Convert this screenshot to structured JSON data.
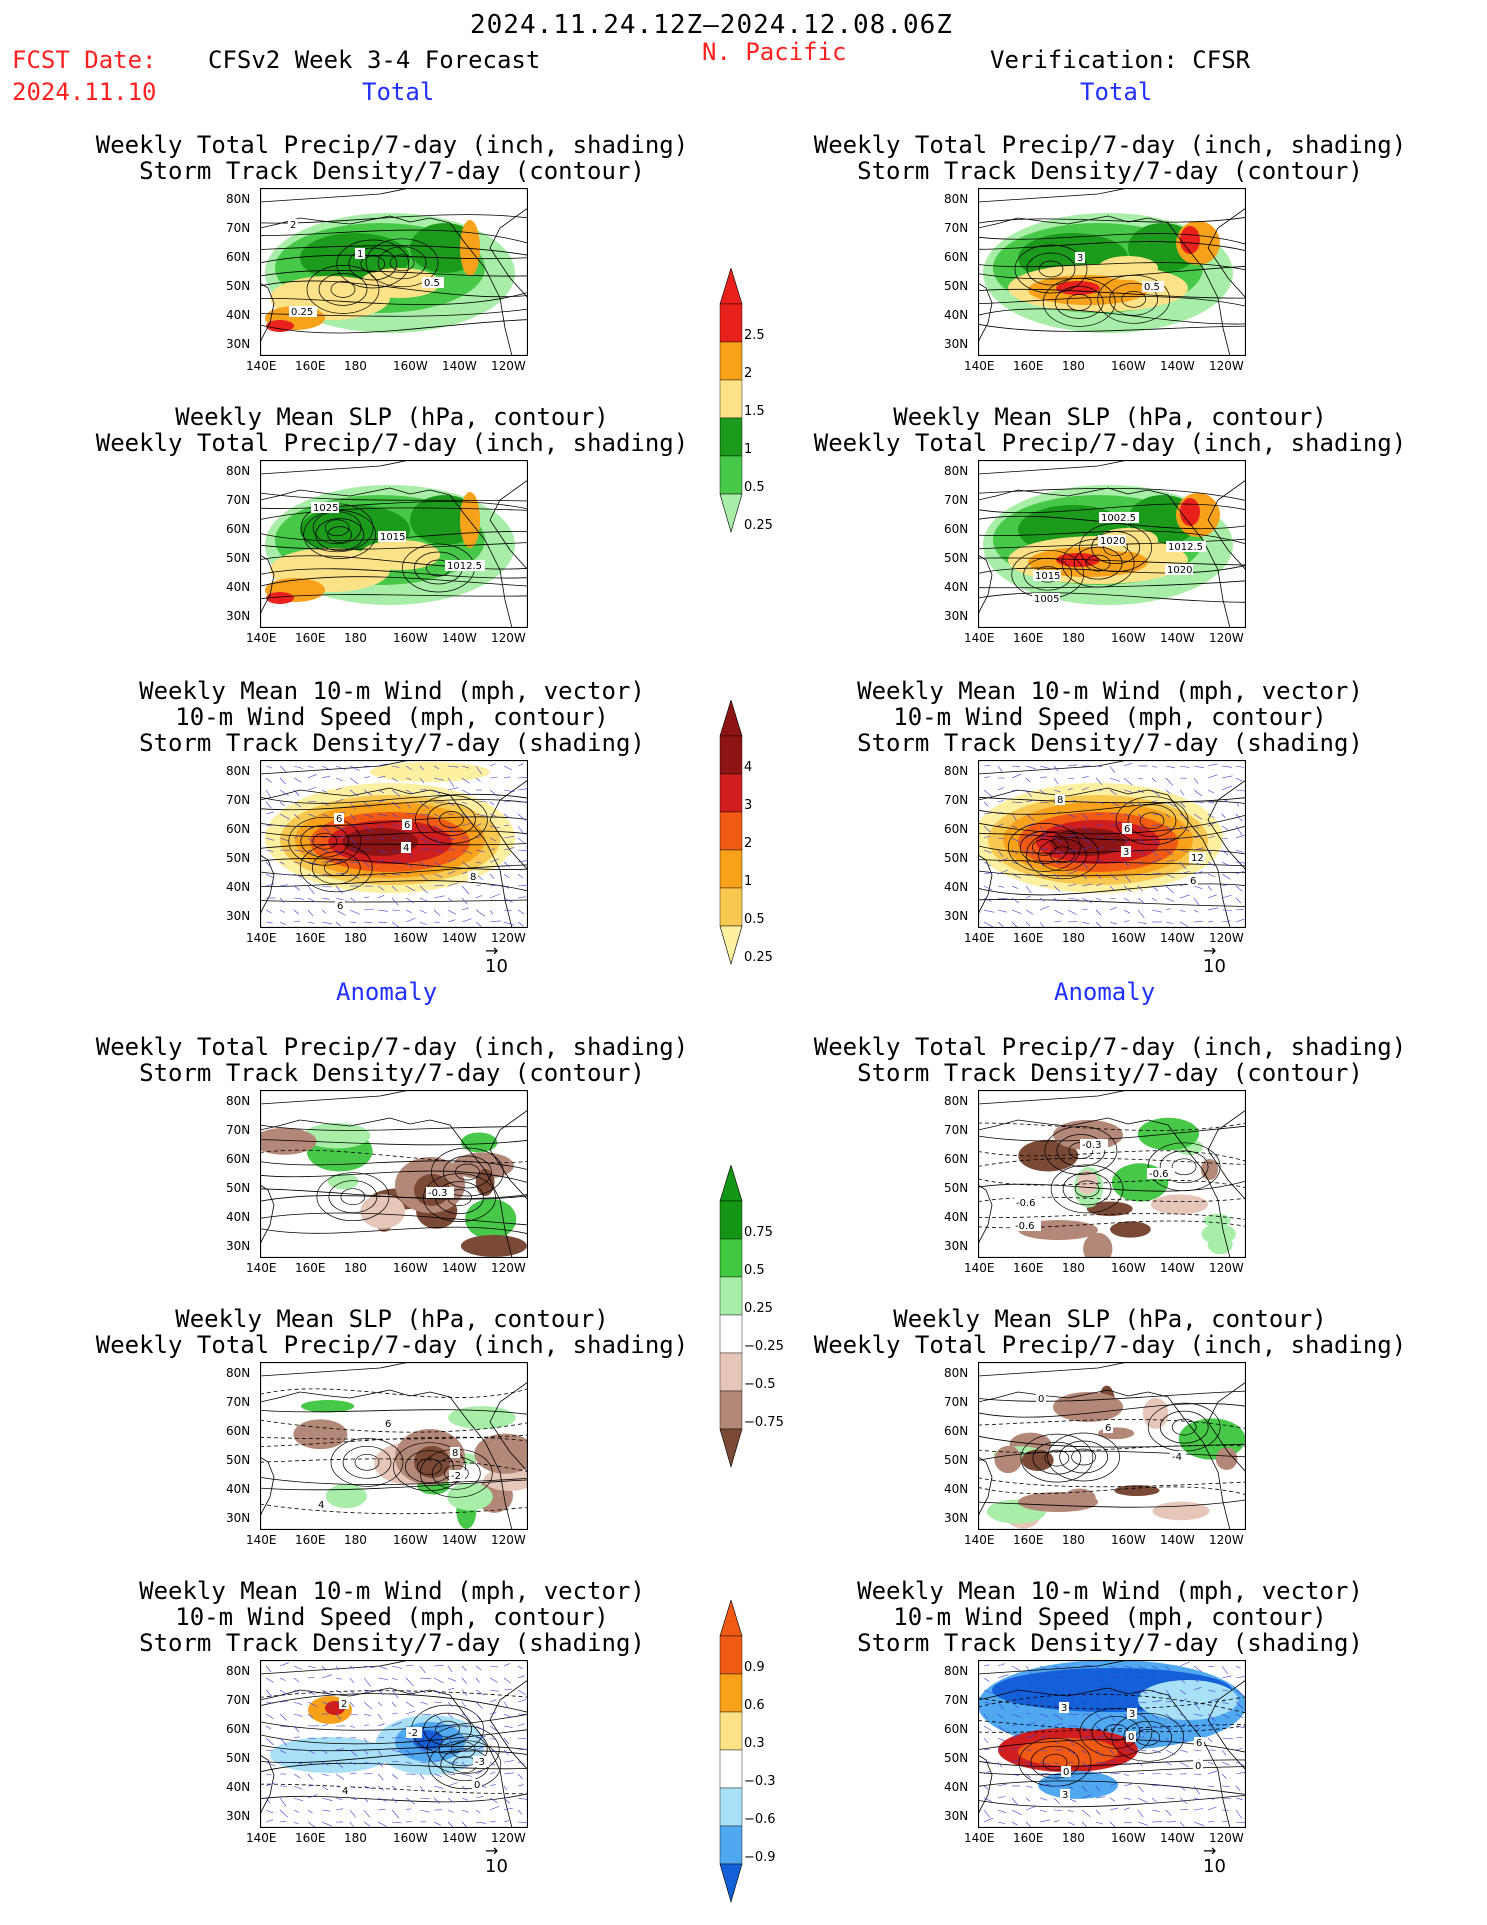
{
  "header": {
    "period": "2024.11.24.12Z–2024.12.08.06Z",
    "fcst_label": "FCST Date:",
    "fcst_date": "2024.11.10",
    "model_title": "CFSv2 Week 3-4 Forecast",
    "region": "N. Pacific",
    "verification": "Verification: CFSR"
  },
  "sections": {
    "total": "Total",
    "anomaly": "Anomaly"
  },
  "panel_titles": {
    "precip_storm": [
      "Weekly Total Precip/7-day (inch, shading)",
      "Storm Track Density/7-day (contour)"
    ],
    "slp_precip": [
      "Weekly Mean SLP (hPa, contour)",
      "Weekly Total Precip/7-day (inch, shading)"
    ],
    "wind_storm": [
      "Weekly Mean 10-m Wind (mph, vector)",
      "10-m Wind Speed (mph, contour)",
      "Storm Track Density/7-day (shading)"
    ]
  },
  "axes": {
    "lat_labels": [
      "80N",
      "70N",
      "60N",
      "50N",
      "40N",
      "30N"
    ],
    "lon_labels": [
      "140E",
      "160E",
      "180",
      "160W",
      "140W",
      "120W"
    ]
  },
  "vector_ref": "10",
  "colorbars": [
    {
      "id": "total-precip",
      "labels": [
        "2.5",
        "2",
        "1.5",
        "1",
        "0.5",
        "0.25"
      ],
      "colors": [
        "#e8211c",
        "#f7a21a",
        "#fde287",
        "#1b9a1b",
        "#48c848",
        "#a8eea8"
      ]
    },
    {
      "id": "total-storm",
      "labels": [
        "4",
        "3",
        "2",
        "1",
        "0.5",
        "0.25"
      ],
      "colors": [
        "#8c1414",
        "#d01e1e",
        "#f05a14",
        "#f7a21a",
        "#f8c850",
        "#fdf0a0"
      ]
    },
    {
      "id": "anom-precip",
      "labels": [
        "0.75",
        "0.5",
        "0.25",
        "−0.25",
        "−0.5",
        "−0.75"
      ],
      "colors": [
        "#149614",
        "#40c840",
        "#a8eea8",
        "#ffffff",
        "#e6c6b8",
        "#b48878",
        "#7a4a36"
      ]
    },
    {
      "id": "anom-storm",
      "labels": [
        "0.9",
        "0.6",
        "0.3",
        "−0.3",
        "−0.6",
        "−0.9"
      ],
      "colors": [
        "#f05a14",
        "#f7a21a",
        "#fde287",
        "#ffffff",
        "#a8e0f8",
        "#50a8f0",
        "#1460d8"
      ]
    }
  ],
  "panels": [
    {
      "id": "fc-total-precip-storm",
      "labels": [
        "2",
        "1",
        "0.5",
        "0.25"
      ]
    },
    {
      "id": "fc-total-slp-precip",
      "labels": [
        "1025",
        "1015",
        "1012.5"
      ]
    },
    {
      "id": "fc-total-wind-storm",
      "labels": [
        "6",
        "4",
        "8",
        "6",
        "6"
      ]
    },
    {
      "id": "vf-total-precip-storm",
      "labels": [
        "3",
        "0.5"
      ]
    },
    {
      "id": "vf-total-slp-precip",
      "labels": [
        "1020",
        "1020",
        "1005",
        "1002.5",
        "1012.5",
        "1015"
      ]
    },
    {
      "id": "vf-total-wind-storm",
      "labels": [
        "3",
        "6",
        "8",
        "6",
        "12"
      ]
    },
    {
      "id": "fc-anom-precip-storm",
      "labels": [
        "-0.3"
      ]
    },
    {
      "id": "fc-anom-slp-precip",
      "labels": [
        "-2",
        "4",
        "6",
        "8"
      ]
    },
    {
      "id": "fc-anom-wind-storm",
      "labels": [
        "0",
        "2",
        "-2",
        "-3",
        "4"
      ]
    },
    {
      "id": "vf-anom-precip-storm",
      "labels": [
        "-0.6",
        "-0.3",
        "-0.6",
        "-0.6"
      ]
    },
    {
      "id": "vf-anom-slp-precip",
      "labels": [
        "0",
        "6",
        "-4"
      ]
    },
    {
      "id": "vf-anom-wind-storm",
      "labels": [
        "3",
        "0",
        "0",
        "3",
        "3",
        "6",
        "0"
      ]
    }
  ]
}
